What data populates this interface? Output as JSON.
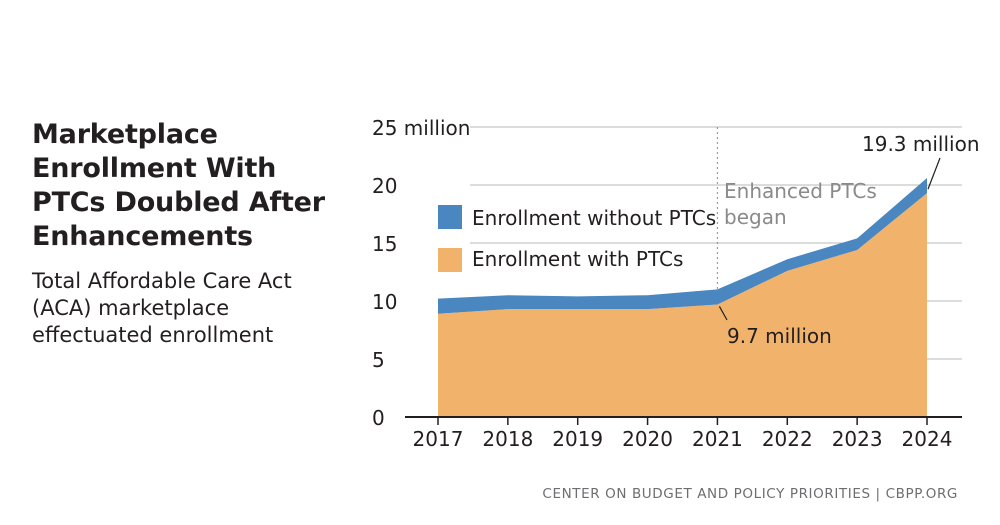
{
  "title": "Marketplace Enrollment With PTCs Doubled After Enhancements",
  "subtitle": "Total Affordable Care Act (ACA) marketplace effectuated enrollment",
  "footer": "CENTER ON BUDGET AND POLICY PRIORITIES | CBPP.ORG",
  "colors": {
    "with_ptcs": "#f1b36b",
    "without_ptcs": "#4a86c0",
    "grid": "#b9b9b9",
    "axis": "#231f20",
    "guide": "#9a9a9a"
  },
  "chart_data": {
    "type": "area",
    "stacked": true,
    "x": [
      "2017",
      "2018",
      "2019",
      "2020",
      "2021",
      "2022",
      "2023",
      "2024"
    ],
    "series": [
      {
        "name": "Enrollment with PTCs",
        "values": [
          8.9,
          9.3,
          9.3,
          9.3,
          9.7,
          12.6,
          14.4,
          19.3
        ]
      },
      {
        "name": "Enrollment without PTCs",
        "values": [
          1.3,
          1.2,
          1.1,
          1.2,
          1.3,
          1.0,
          1.0,
          1.3
        ]
      }
    ],
    "ylim": [
      0,
      25
    ],
    "yticks": [
      "0",
      "5",
      "10",
      "15",
      "20",
      "25 million"
    ],
    "ytick_values": [
      0,
      5,
      10,
      15,
      20,
      25
    ],
    "legend": [
      "Enrollment without PTCs",
      "Enrollment with PTCs"
    ],
    "legend_position": "upper-left",
    "annotations": {
      "policy_line": {
        "x": "2021",
        "label": "Enhanced PTCs began"
      },
      "start_label": {
        "x": "2021",
        "text": "9.7 million"
      },
      "end_label": {
        "x": "2024",
        "text": "19.3 million"
      }
    }
  }
}
